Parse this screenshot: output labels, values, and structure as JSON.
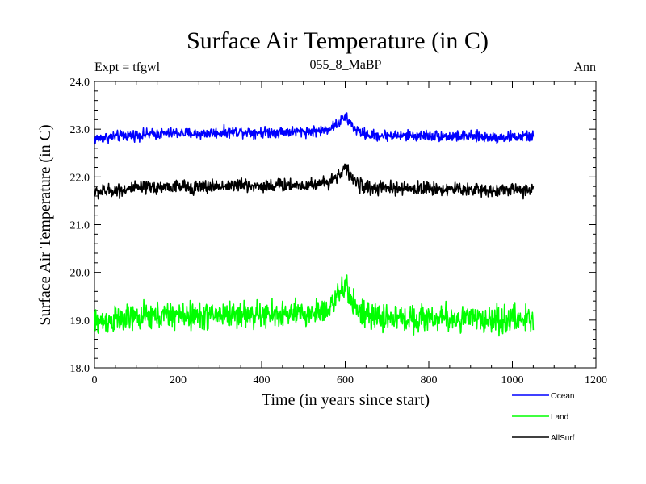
{
  "chart_data": {
    "type": "line",
    "title": "Surface Air Temperature (in C)",
    "subtitle": "055_8_MaBP",
    "left_label": "Expt = tfgwl",
    "right_label": "Ann",
    "xlabel": "Time (in years since start)",
    "ylabel": "Surface Air Temperature (in C)",
    "xlim": [
      0,
      1200
    ],
    "ylim": [
      18.0,
      24.0
    ],
    "x_ticks": [
      "0",
      "200",
      "400",
      "600",
      "800",
      "1000",
      "1200"
    ],
    "y_ticks": [
      "18.0",
      "19.0",
      "20.0",
      "21.0",
      "22.0",
      "23.0",
      "24.0"
    ],
    "x_tick_values": [
      0,
      200,
      400,
      600,
      800,
      1000,
      1200
    ],
    "y_tick_values": [
      18,
      19,
      20,
      21,
      22,
      23,
      24
    ],
    "legend_position": "bottom-right, outside plot",
    "series": [
      {
        "name": "Ocean",
        "color": "#0000ff",
        "x": [
          0,
          50,
          100,
          150,
          200,
          250,
          300,
          350,
          400,
          450,
          500,
          550,
          580,
          600,
          610,
          630,
          660,
          700,
          750,
          800,
          850,
          900,
          950,
          1000,
          1050
        ],
        "values": [
          22.8,
          22.85,
          22.88,
          22.9,
          22.92,
          22.9,
          22.93,
          22.95,
          22.93,
          22.95,
          22.95,
          22.97,
          23.1,
          23.25,
          23.15,
          22.95,
          22.87,
          22.87,
          22.86,
          22.87,
          22.85,
          22.85,
          22.83,
          22.84,
          22.85
        ],
        "noise": 0.08
      },
      {
        "name": "Land",
        "color": "#00ff00",
        "x": [
          0,
          50,
          100,
          150,
          200,
          250,
          300,
          350,
          400,
          450,
          500,
          550,
          580,
          600,
          610,
          630,
          660,
          700,
          750,
          800,
          850,
          900,
          950,
          1000,
          1050
        ],
        "values": [
          18.95,
          19.0,
          19.05,
          19.08,
          19.1,
          19.08,
          19.12,
          19.12,
          19.1,
          19.12,
          19.12,
          19.2,
          19.45,
          19.7,
          19.55,
          19.2,
          19.05,
          19.05,
          19.03,
          19.05,
          19.03,
          19.02,
          19.0,
          19.02,
          19.02
        ],
        "noise": 0.2
      },
      {
        "name": "AllSurf",
        "color": "#000000",
        "x": [
          0,
          50,
          100,
          150,
          200,
          250,
          300,
          350,
          400,
          450,
          500,
          550,
          580,
          600,
          610,
          630,
          660,
          700,
          750,
          800,
          850,
          900,
          950,
          1000,
          1050
        ],
        "values": [
          21.68,
          21.72,
          21.76,
          21.78,
          21.8,
          21.78,
          21.81,
          21.83,
          21.81,
          21.83,
          21.83,
          21.87,
          22.0,
          22.2,
          22.05,
          21.85,
          21.76,
          21.76,
          21.75,
          21.76,
          21.74,
          21.74,
          21.72,
          21.73,
          21.74
        ],
        "noise": 0.1
      }
    ]
  }
}
